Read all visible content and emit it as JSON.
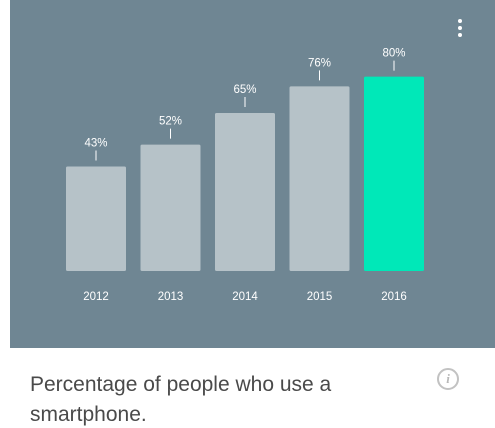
{
  "chart_data": {
    "type": "bar",
    "categories": [
      "2012",
      "2013",
      "2014",
      "2015",
      "2016"
    ],
    "values": [
      43,
      52,
      65,
      76,
      80
    ],
    "value_suffix": "%",
    "highlight_index": 4,
    "ylim": [
      0,
      100
    ],
    "grid": false,
    "colors": {
      "bar": "#b6c2c8",
      "highlight": "#00e8b8",
      "panel": "#6f8693",
      "text": "#ffffff"
    }
  },
  "caption": "Percentage of people who use a smartphone.",
  "info_icon": {
    "icon": "info-icon",
    "glyph": "i"
  },
  "menu_icon": {
    "icon": "more-vert-icon"
  }
}
